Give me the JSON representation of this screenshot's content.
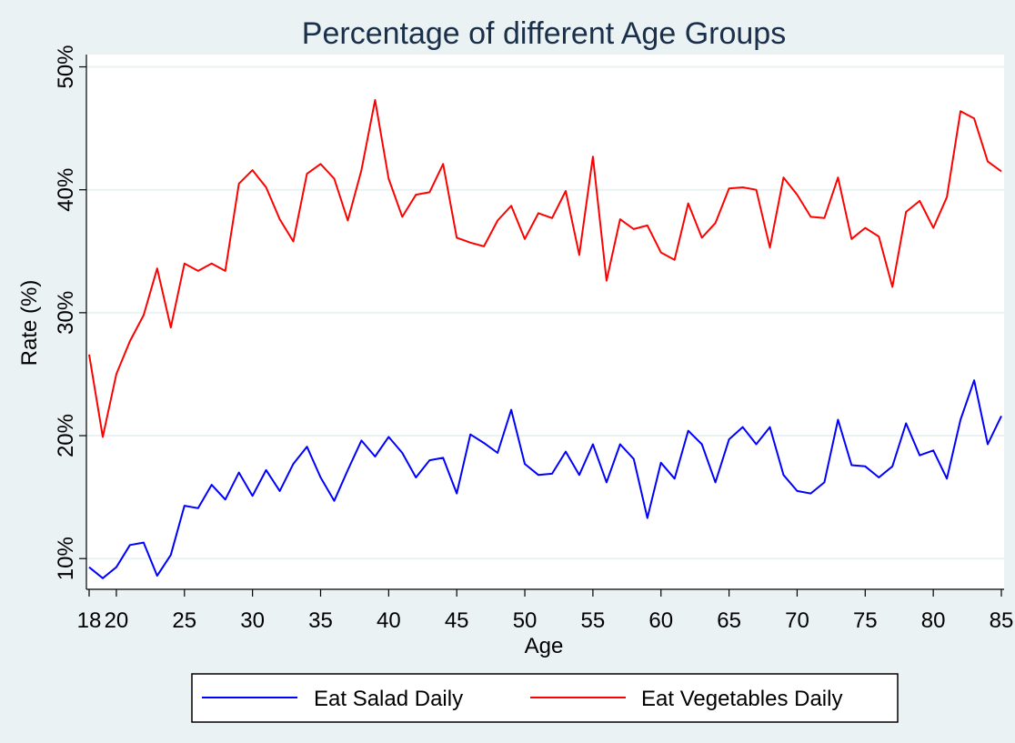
{
  "chart_data": {
    "type": "line",
    "title": "Percentage of different Age Groups",
    "xlabel": "Age",
    "ylabel": "Rate (%)",
    "x": [
      18,
      19,
      20,
      21,
      22,
      23,
      24,
      25,
      26,
      27,
      28,
      29,
      30,
      31,
      32,
      33,
      34,
      35,
      36,
      37,
      38,
      39,
      40,
      41,
      42,
      43,
      44,
      45,
      46,
      47,
      48,
      49,
      50,
      51,
      52,
      53,
      54,
      55,
      56,
      57,
      58,
      59,
      60,
      61,
      62,
      63,
      64,
      65,
      66,
      67,
      68,
      69,
      70,
      71,
      72,
      73,
      74,
      75,
      76,
      77,
      78,
      79,
      80,
      81,
      82,
      83,
      84,
      85
    ],
    "xticks": [
      18,
      20,
      25,
      30,
      35,
      40,
      45,
      50,
      55,
      60,
      65,
      70,
      75,
      80,
      85
    ],
    "xtick_labels": [
      "18",
      "20",
      "25",
      "30",
      "35",
      "40",
      "45",
      "50",
      "55",
      "60",
      "65",
      "70",
      "75",
      "80",
      "85"
    ],
    "yticks": [
      10,
      20,
      30,
      40,
      50
    ],
    "ytick_labels": [
      "10%",
      "20%",
      "30%",
      "40%",
      "50%"
    ],
    "xlim": [
      17.8,
      85.2
    ],
    "ylim": [
      7.5,
      51
    ],
    "grid": true,
    "legend_position": "bottom",
    "series": [
      {
        "name": "Eat Salad Daily",
        "color": "#0000ff",
        "values": [
          9.3,
          8.4,
          9.3,
          11.1,
          11.3,
          8.6,
          10.3,
          14.3,
          14.1,
          16.0,
          14.8,
          17.0,
          15.1,
          17.2,
          15.5,
          17.7,
          19.1,
          16.6,
          14.7,
          17.2,
          19.6,
          18.3,
          19.9,
          18.6,
          16.6,
          18.0,
          18.2,
          15.3,
          20.1,
          19.4,
          18.6,
          22.1,
          17.7,
          16.8,
          16.9,
          18.7,
          16.8,
          19.3,
          16.2,
          19.3,
          18.1,
          13.3,
          17.8,
          16.5,
          20.4,
          19.3,
          16.2,
          19.7,
          20.7,
          19.3,
          20.7,
          16.8,
          15.5,
          15.3,
          16.2,
          21.3,
          17.6,
          17.5,
          16.6,
          17.5,
          21.0,
          18.4,
          18.8,
          16.5,
          21.3,
          24.5,
          19.3,
          21.6
        ]
      },
      {
        "name": "Eat Vegetables Daily",
        "color": "#ff0000",
        "values": [
          26.6,
          19.9,
          25.0,
          27.7,
          29.8,
          33.6,
          28.8,
          34.0,
          33.4,
          34.0,
          33.4,
          40.5,
          41.6,
          40.2,
          37.6,
          35.8,
          41.3,
          42.1,
          40.9,
          37.5,
          41.6,
          47.3,
          40.9,
          37.8,
          39.6,
          39.8,
          42.1,
          36.1,
          35.7,
          35.4,
          37.5,
          38.7,
          36.0,
          38.1,
          37.7,
          39.9,
          34.7,
          42.7,
          32.6,
          37.6,
          36.8,
          37.1,
          34.9,
          34.3,
          38.9,
          36.1,
          37.3,
          40.1,
          40.2,
          40.0,
          35.3,
          41.0,
          39.6,
          37.8,
          37.7,
          41.0,
          36.0,
          36.9,
          36.2,
          32.1,
          38.2,
          39.1,
          36.9,
          39.4,
          46.4,
          45.8,
          42.3,
          41.5
        ]
      }
    ]
  }
}
